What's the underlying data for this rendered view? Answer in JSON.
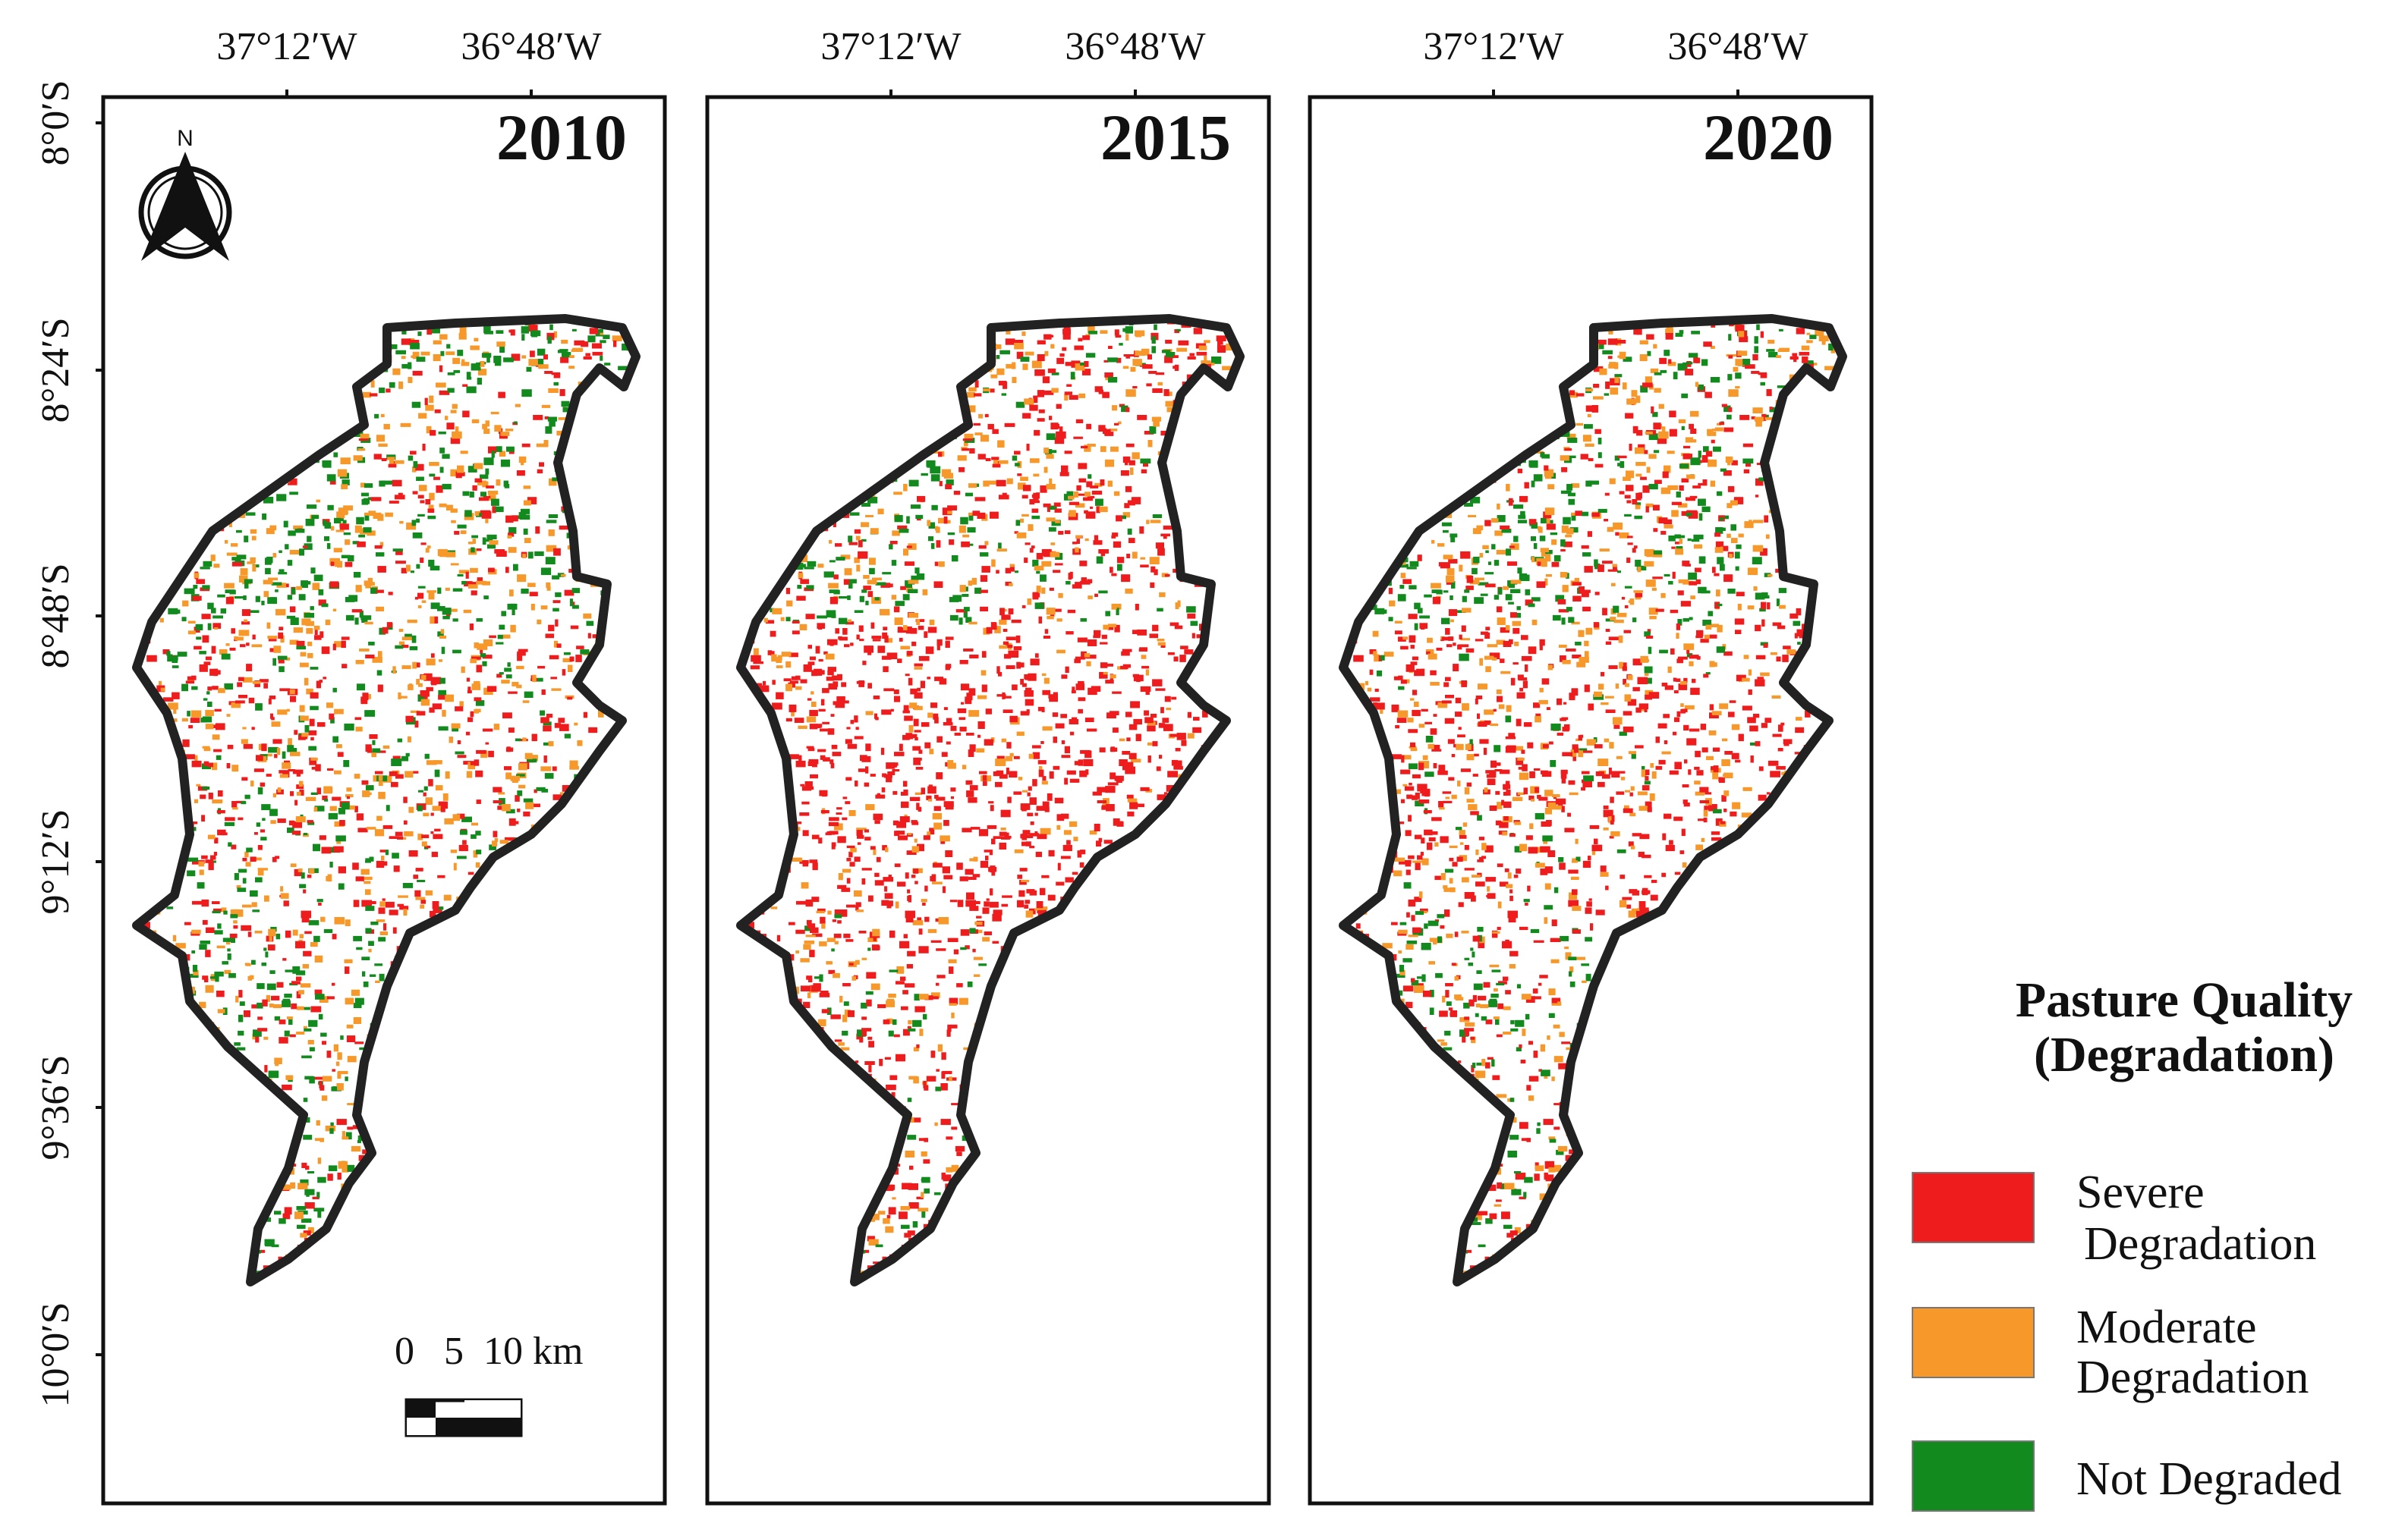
{
  "panels": [
    {
      "year": "2010",
      "mix": {
        "severe": 0.28,
        "moderate": 0.34,
        "not_degraded": 0.38
      }
    },
    {
      "year": "2015",
      "mix": {
        "severe": 0.56,
        "moderate": 0.3,
        "not_degraded": 0.14
      }
    },
    {
      "year": "2020",
      "mix": {
        "severe": 0.4,
        "moderate": 0.33,
        "not_degraded": 0.27
      }
    }
  ],
  "axes": {
    "longitude_labels": [
      "37°12′W",
      "36°48′W"
    ],
    "latitude_labels": [
      "8°0′S",
      "8°24′S",
      "8°48′S",
      "9°12′S",
      "9°36′S",
      "10°0′S"
    ]
  },
  "north_arrow": {
    "label": "N",
    "icon": "north-arrow-icon"
  },
  "scale_bar": {
    "label": "0   5  10 km"
  },
  "legend": {
    "title_line1": "Pasture Quality",
    "title_line2": "(Degradation)",
    "items": [
      {
        "line1": "Severe",
        "line2": "Degradation",
        "color": "#ee1c1c"
      },
      {
        "line1": "Moderate",
        "line2": "Degradation",
        "color": "#f7992a"
      },
      {
        "line1": "Not Degraded",
        "line2": "",
        "color": "#138a1e"
      }
    ]
  },
  "colors": {
    "severe": "#ee1c1c",
    "moderate": "#f7992a",
    "not_degraded": "#138a1e",
    "outline": "#222222"
  }
}
